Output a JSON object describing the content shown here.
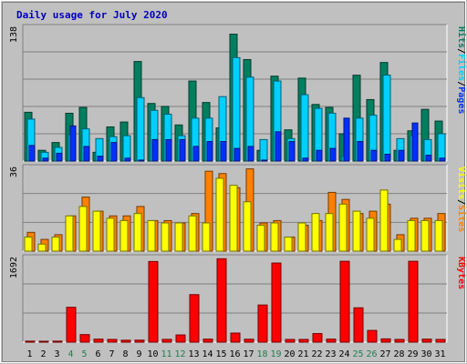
{
  "chart_data": {
    "type": "bar",
    "title": "Daily usage for July 2020",
    "categories": [
      "1",
      "2",
      "3",
      "4",
      "5",
      "6",
      "7",
      "8",
      "9",
      "10",
      "11",
      "12",
      "13",
      "14",
      "15",
      "16",
      "17",
      "18",
      "19",
      "20",
      "21",
      "22",
      "23",
      "24",
      "25",
      "26",
      "27",
      "28",
      "29",
      "30",
      "31"
    ],
    "weekend_days": [
      4,
      5,
      11,
      12,
      18,
      19,
      25,
      26
    ],
    "colors": {
      "background": "#c0c0c0",
      "title": "#0000c0",
      "hits": "#007f5f",
      "files": "#00cfff",
      "pages": "#0030ff",
      "visits": "#ff8000",
      "sites": "#ffff00",
      "kbytes": "#ff0000",
      "weekend_label": "#1f7f4f",
      "weekday_label": "#000000"
    },
    "panels": [
      {
        "id": "hits",
        "max_label": "138",
        "ymax": 138,
        "legend": [
          "Pages",
          "Files",
          "Hits"
        ],
        "series": [
          {
            "name": "Hits",
            "values": [
              50,
              11,
              19,
              49,
              55,
              9,
              35,
              40,
              102,
              59,
              56,
              37,
              82,
              60,
              34,
              130,
              104,
              11,
              87,
              32,
              85,
              58,
              55,
              28,
              88,
              63,
              101,
              11,
              31,
              53,
              41
            ]
          },
          {
            "name": "Files",
            "values": [
              43,
              9,
              14,
              27,
              33,
              23,
              25,
              26,
              65,
              52,
              48,
              26,
              44,
              44,
              66,
              106,
              86,
              22,
              82,
              23,
              68,
              54,
              49,
              5,
              44,
              47,
              88,
              23,
              26,
              22,
              28
            ]
          },
          {
            "name": "Pages",
            "values": [
              16,
              3,
              8,
              36,
              15,
              5,
              19,
              3,
              1,
              22,
              22,
              22,
              15,
              20,
              20,
              13,
              15,
              1,
              30,
              20,
              3,
              11,
              13,
              44,
              20,
              11,
              7,
              11,
              39,
              6,
              3
            ]
          }
        ]
      },
      {
        "id": "visits",
        "max_label": "36",
        "ymax": 36,
        "legend": [
          "Sites",
          "Visits"
        ],
        "series": [
          {
            "name": "Visits",
            "values": [
              8,
              5,
              7,
              15,
              23,
              17,
              15,
              15,
              19,
              13,
              13,
              12,
              16,
              34,
              33,
              27,
              35,
              12,
              13,
              6,
              11,
              13,
              25,
              22,
              16,
              17,
              20,
              7,
              14,
              14,
              16
            ]
          },
          {
            "name": "Sites",
            "values": [
              6,
              3,
              6,
              15,
              19,
              17,
              14,
              13,
              16,
              13,
              12,
              12,
              15,
              12,
              31,
              28,
              21,
              11,
              12,
              6,
              12,
              16,
              16,
              20,
              17,
              14,
              26,
              5,
              13,
              13,
              13
            ]
          }
        ]
      },
      {
        "id": "kbytes",
        "max_label": "1692",
        "ymax": 1692,
        "legend": [
          "KBytes"
        ],
        "series": [
          {
            "name": "KBytes",
            "values": [
              20,
              12,
              20,
              690,
              150,
              60,
              54,
              38,
              40,
              1595,
              55,
              143,
              940,
              60,
              1650,
              180,
              58,
              735,
              1565,
              54,
              54,
              170,
              60,
              1600,
              680,
              232,
              65,
              54,
              1600,
              60,
              54
            ]
          }
        ]
      }
    ]
  }
}
